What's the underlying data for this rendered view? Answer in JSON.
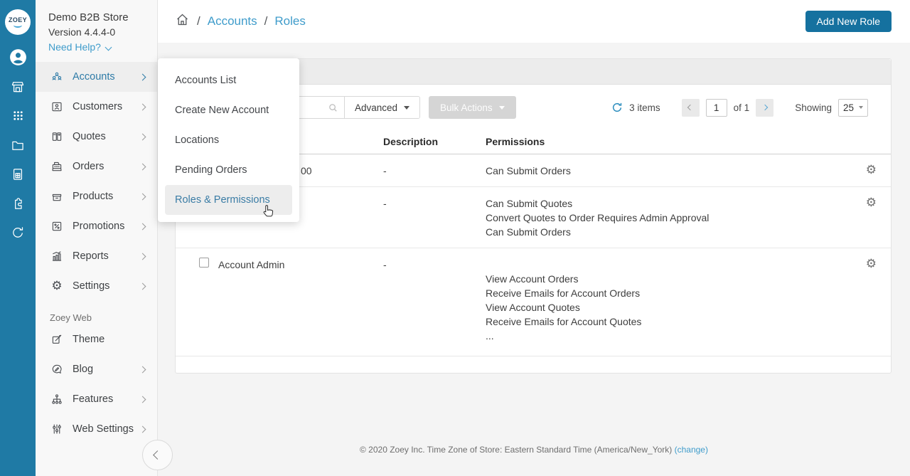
{
  "brand": {
    "logo_text": "ZOEY",
    "store_name": "Demo B2B Store",
    "version": "Version 4.4.4-0",
    "help_label": "Need Help?"
  },
  "rail": {
    "icons": [
      "user",
      "storefront",
      "apps-grid",
      "folder",
      "spreadsheet",
      "puzzle",
      "sync"
    ]
  },
  "sidebar": {
    "items": [
      {
        "icon": "accounts",
        "label": "Accounts",
        "chevron": true,
        "active": true
      },
      {
        "icon": "customers",
        "label": "Customers",
        "chevron": true
      },
      {
        "icon": "quotes",
        "label": "Quotes",
        "chevron": true
      },
      {
        "icon": "orders",
        "label": "Orders",
        "chevron": true
      },
      {
        "icon": "products",
        "label": "Products",
        "chevron": true
      },
      {
        "icon": "promotions",
        "label": "Promotions",
        "chevron": true
      },
      {
        "icon": "reports",
        "label": "Reports",
        "chevron": true
      },
      {
        "icon": "settings",
        "label": "Settings",
        "chevron": true
      }
    ],
    "section_label": "Zoey Web",
    "section_items": [
      {
        "icon": "theme",
        "label": "Theme",
        "chevron": false
      },
      {
        "icon": "blog",
        "label": "Blog",
        "chevron": true
      },
      {
        "icon": "features",
        "label": "Features",
        "chevron": true
      },
      {
        "icon": "web-settings",
        "label": "Web Settings",
        "chevron": true
      }
    ]
  },
  "flyout": {
    "items": [
      {
        "label": "Accounts List"
      },
      {
        "label": "Create New Account"
      },
      {
        "label": "Locations"
      },
      {
        "label": "Pending Orders"
      },
      {
        "label": "Roles & Permissions",
        "active": true
      }
    ]
  },
  "header": {
    "breadcrumb": {
      "items": [
        "Accounts",
        "Roles"
      ],
      "separator": "/"
    },
    "add_button": "Add New Role"
  },
  "toolbar": {
    "advanced_label": "Advanced",
    "bulk_actions_label": "Bulk Actions",
    "items_count": "3 items",
    "page_value": "1",
    "of_label": "of 1",
    "showing_label": "Showing",
    "per_page": "25"
  },
  "table": {
    "headers": {
      "role": "",
      "description": "Description",
      "permissions": "Permissions"
    },
    "rows": [
      {
        "name": "00",
        "description": "-",
        "permissions": [
          "Can Submit Orders"
        ]
      },
      {
        "name": "",
        "description": "-",
        "permissions": [
          "Can Submit Quotes",
          "Convert Quotes to Order Requires Admin Approval",
          "Can Submit Orders"
        ]
      },
      {
        "name": "Account Admin",
        "description": "-",
        "permissions": [
          "",
          "View Account Orders",
          "Receive Emails for Account Orders",
          "View Account Quotes",
          "Receive Emails for Account Quotes",
          "..."
        ]
      }
    ]
  },
  "footer": {
    "copyright": "© 2020 Zoey Inc. Time Zone of Store: Eastern Standard Time (America/New_York)",
    "change_link": "(change)"
  }
}
